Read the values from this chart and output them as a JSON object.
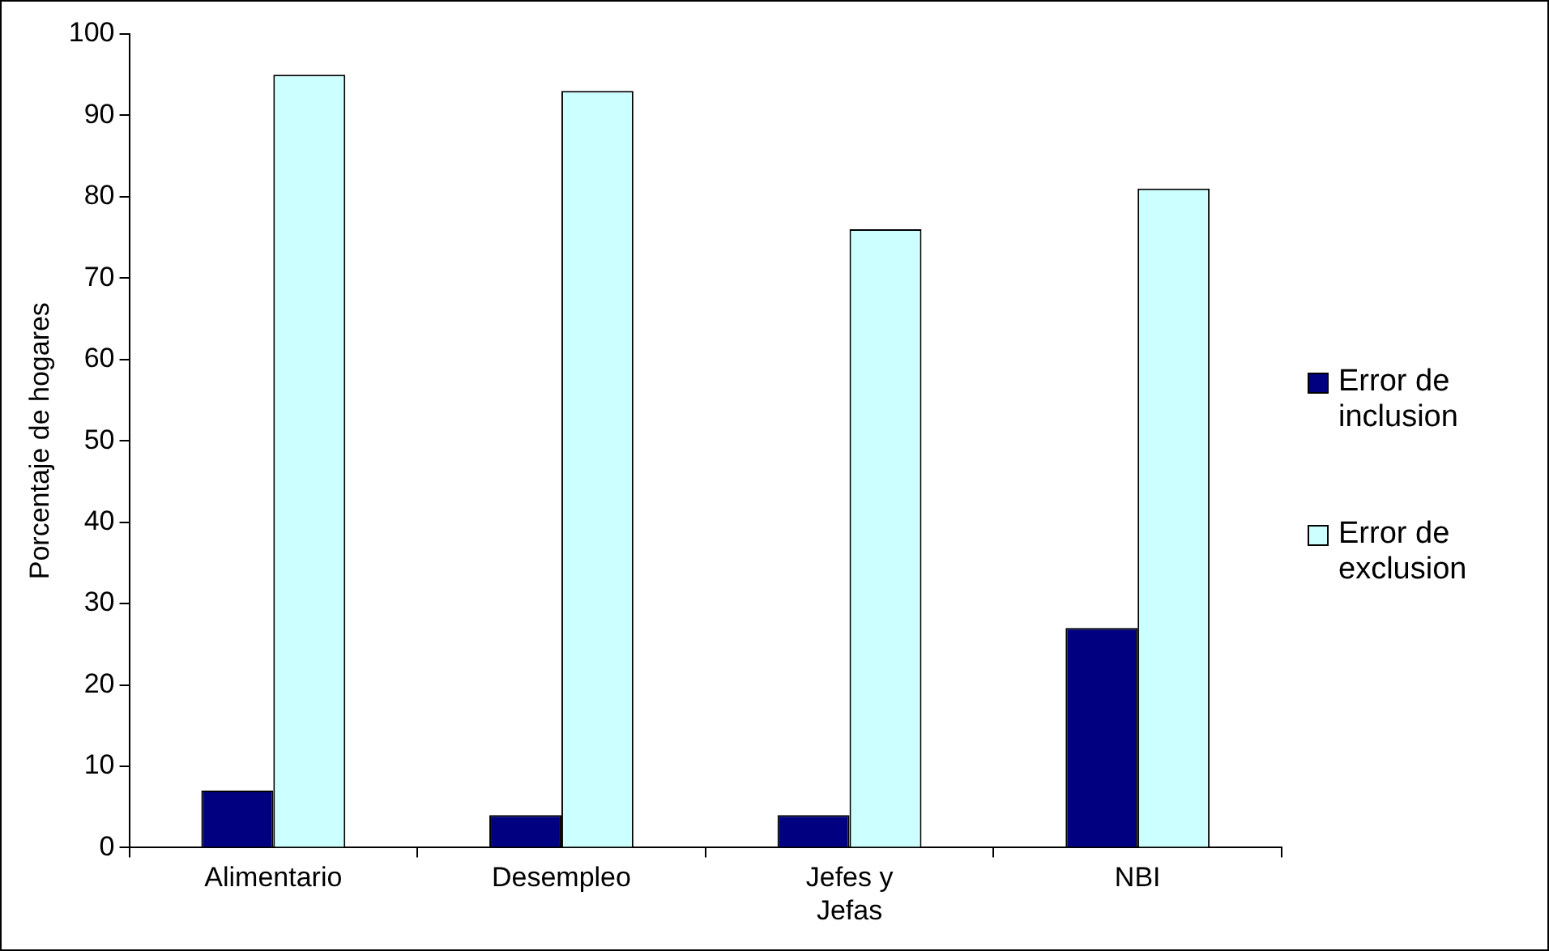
{
  "chart_data": {
    "type": "bar",
    "ylabel": "Porcentaje de hogares",
    "categories": [
      "Alimentario",
      "Desempleo",
      "Jefes y Jefas",
      "NBI"
    ],
    "series": [
      {
        "name": "Error de inclusion",
        "color": "#000080",
        "values": [
          7,
          4,
          4,
          27
        ]
      },
      {
        "name": "Error de exclusion",
        "color": "#ccffff",
        "values": [
          95,
          93,
          76,
          81
        ]
      }
    ],
    "ylim": [
      0,
      100
    ],
    "yticks": [
      0,
      10,
      20,
      30,
      40,
      50,
      60,
      70,
      80,
      90,
      100
    ],
    "grid": false,
    "legend": "right"
  }
}
